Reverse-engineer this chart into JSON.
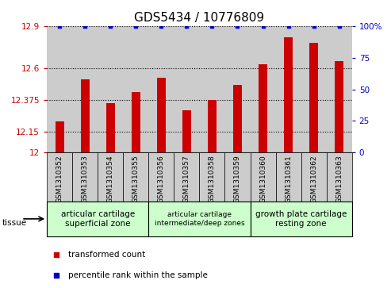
{
  "title": "GDS5434 / 10776809",
  "samples": [
    "GSM1310352",
    "GSM1310353",
    "GSM1310354",
    "GSM1310355",
    "GSM1310356",
    "GSM1310357",
    "GSM1310358",
    "GSM1310359",
    "GSM1310360",
    "GSM1310361",
    "GSM1310362",
    "GSM1310363"
  ],
  "bar_values": [
    12.22,
    12.52,
    12.35,
    12.43,
    12.53,
    12.3,
    12.375,
    12.48,
    12.63,
    12.82,
    12.78,
    12.65
  ],
  "percentile_values": [
    100,
    100,
    100,
    100,
    100,
    100,
    100,
    100,
    100,
    100,
    100,
    100
  ],
  "bar_color": "#cc0000",
  "percentile_color": "#0000cc",
  "ylim_left": [
    12.0,
    12.9
  ],
  "ylim_right": [
    0,
    100
  ],
  "yticks_left": [
    12.0,
    12.15,
    12.375,
    12.6,
    12.9
  ],
  "ytick_labels_left": [
    "12",
    "12.15",
    "12.375",
    "12.6",
    "12.9"
  ],
  "yticks_right": [
    0,
    25,
    50,
    75,
    100
  ],
  "ytick_labels_right": [
    "0",
    "25",
    "50",
    "75",
    "100%"
  ],
  "tissue_groups": [
    {
      "label": "articular cartilage\nsuperficial zone",
      "start": 0,
      "end": 4,
      "color": "#ccffcc"
    },
    {
      "label": "articular cartilage\nintermediate/deep zones",
      "start": 4,
      "end": 8,
      "color": "#ccffcc"
    },
    {
      "label": "growth plate cartilage\nresting zone",
      "start": 8,
      "end": 12,
      "color": "#ccffcc"
    }
  ],
  "tissue_label": "tissue",
  "legend_items": [
    {
      "label": "transformed count",
      "color": "#cc0000",
      "marker": "s"
    },
    {
      "label": "percentile rank within the sample",
      "color": "#0000cc",
      "marker": "s"
    }
  ],
  "bg_color": "#ffffff",
  "bar_bg_color": "#cccccc",
  "grid_color": "#000000",
  "title_fontsize": 11,
  "axis_fontsize": 8,
  "tick_fontsize": 7.5,
  "sample_fontsize": 6.5
}
